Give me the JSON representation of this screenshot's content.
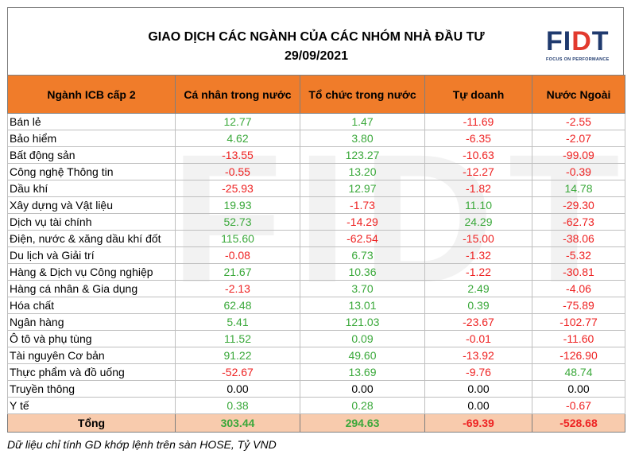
{
  "title_line1": "GIAO DỊCH CÁC NGÀNH CỦA CÁC NHÓM NHÀ ĐẦU TƯ",
  "title_line2": "29/09/2021",
  "logo": {
    "text_a": "FI",
    "text_b": "D",
    "text_c": "T",
    "tagline": "FOCUS ON PERFORMANCE",
    "brand_color": "#1f3a6e",
    "accent_color": "#e23a2e"
  },
  "watermark": "FIDT",
  "columns": [
    "Ngành ICB cấp 2",
    "Cá nhân trong nước",
    "Tổ chức trong nước",
    "Tự doanh",
    "Nước Ngoài"
  ],
  "rows": [
    {
      "name": "Bán lẻ",
      "v": [
        "12.77",
        "1.47",
        "-11.69",
        "-2.55"
      ]
    },
    {
      "name": "Bảo hiểm",
      "v": [
        "4.62",
        "3.80",
        "-6.35",
        "-2.07"
      ]
    },
    {
      "name": "Bất động sản",
      "v": [
        "-13.55",
        "123.27",
        "-10.63",
        "-99.09"
      ]
    },
    {
      "name": "Công nghệ Thông tin",
      "v": [
        "-0.55",
        "13.20",
        "-12.27",
        "-0.39"
      ]
    },
    {
      "name": "Dầu khí",
      "v": [
        "-25.93",
        "12.97",
        "-1.82",
        "14.78"
      ]
    },
    {
      "name": "Xây dựng và Vật liệu",
      "v": [
        "19.93",
        "-1.73",
        "11.10",
        "-29.30"
      ]
    },
    {
      "name": "Dịch vụ tài chính",
      "v": [
        "52.73",
        "-14.29",
        "24.29",
        "-62.73"
      ]
    },
    {
      "name": "Điện, nước & xăng dầu khí đốt",
      "v": [
        "115.60",
        "-62.54",
        "-15.00",
        "-38.06"
      ]
    },
    {
      "name": "Du lịch và Giải trí",
      "v": [
        "-0.08",
        "6.73",
        "-1.32",
        "-5.32"
      ]
    },
    {
      "name": "Hàng & Dịch vụ Công nghiệp",
      "v": [
        "21.67",
        "10.36",
        "-1.22",
        "-30.81"
      ]
    },
    {
      "name": "Hàng cá nhân & Gia dụng",
      "v": [
        "-2.13",
        "3.70",
        "2.49",
        "-4.06"
      ]
    },
    {
      "name": "Hóa chất",
      "v": [
        "62.48",
        "13.01",
        "0.39",
        "-75.89"
      ]
    },
    {
      "name": "Ngân hàng",
      "v": [
        "5.41",
        "121.03",
        "-23.67",
        "-102.77"
      ]
    },
    {
      "name": "Ô tô và phụ tùng",
      "v": [
        "11.52",
        "0.09",
        "-0.01",
        "-11.60"
      ]
    },
    {
      "name": "Tài nguyên Cơ bản",
      "v": [
        "91.22",
        "49.60",
        "-13.92",
        "-126.90"
      ]
    },
    {
      "name": "Thực phẩm và đồ uống",
      "v": [
        "-52.67",
        "13.69",
        "-9.76",
        "48.74"
      ]
    },
    {
      "name": "Truyền thông",
      "v": [
        "0.00",
        "0.00",
        "0.00",
        "0.00"
      ]
    },
    {
      "name": "Y tế",
      "v": [
        "0.38",
        "0.28",
        "0.00",
        "-0.67"
      ]
    }
  ],
  "total": {
    "name": "Tổng",
    "v": [
      "303.44",
      "294.63",
      "-69.39",
      "-528.68"
    ]
  },
  "note": "Dữ liệu chỉ tính GD khớp lệnh trên sàn HOSE, Tỷ VND",
  "colors": {
    "header_bg": "#f07c2a",
    "total_bg": "#f8cbad",
    "positive": "#3aa83a",
    "negative": "#ee2222"
  }
}
